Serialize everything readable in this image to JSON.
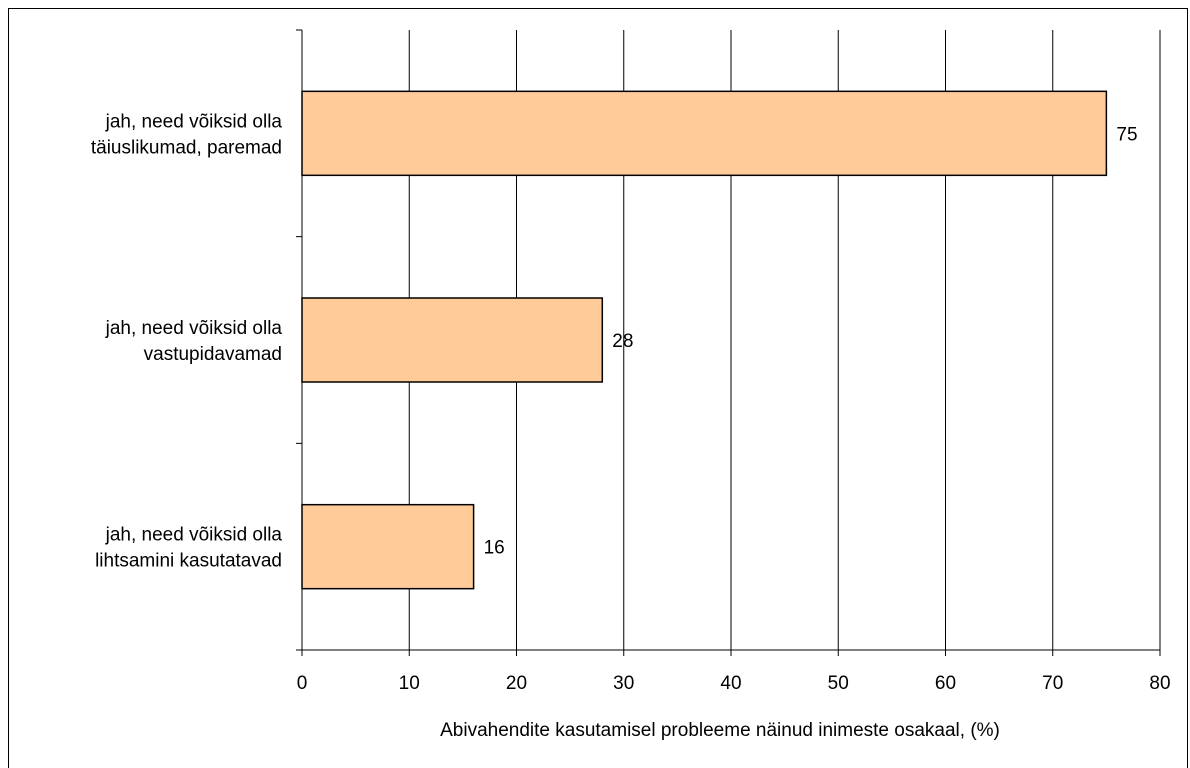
{
  "chart_data": {
    "type": "bar",
    "orientation": "horizontal",
    "categories": [
      [
        "jah, need võiksid olla",
        "täiuslikumad, paremad"
      ],
      [
        "jah, need võiksid olla",
        "vastupidavamad"
      ],
      [
        "jah, need võiksid olla",
        "lihtsamini kasutatavad"
      ]
    ],
    "values": [
      75,
      28,
      16
    ],
    "data_labels": [
      "75",
      "28",
      "16"
    ],
    "xlabel": "Abivahendite kasutamisel probleeme näinud inimeste osakaal,  (%)",
    "ylabel": "",
    "title": "",
    "xlim": [
      0,
      80
    ],
    "xticks": [
      0,
      10,
      20,
      30,
      40,
      50,
      60,
      70,
      80
    ],
    "grid": "vertical",
    "legend": "none",
    "colors": {
      "bar_fill": "#FFCC99",
      "bar_stroke": "#000000",
      "grid": "#000000",
      "axis": "#000000"
    }
  }
}
